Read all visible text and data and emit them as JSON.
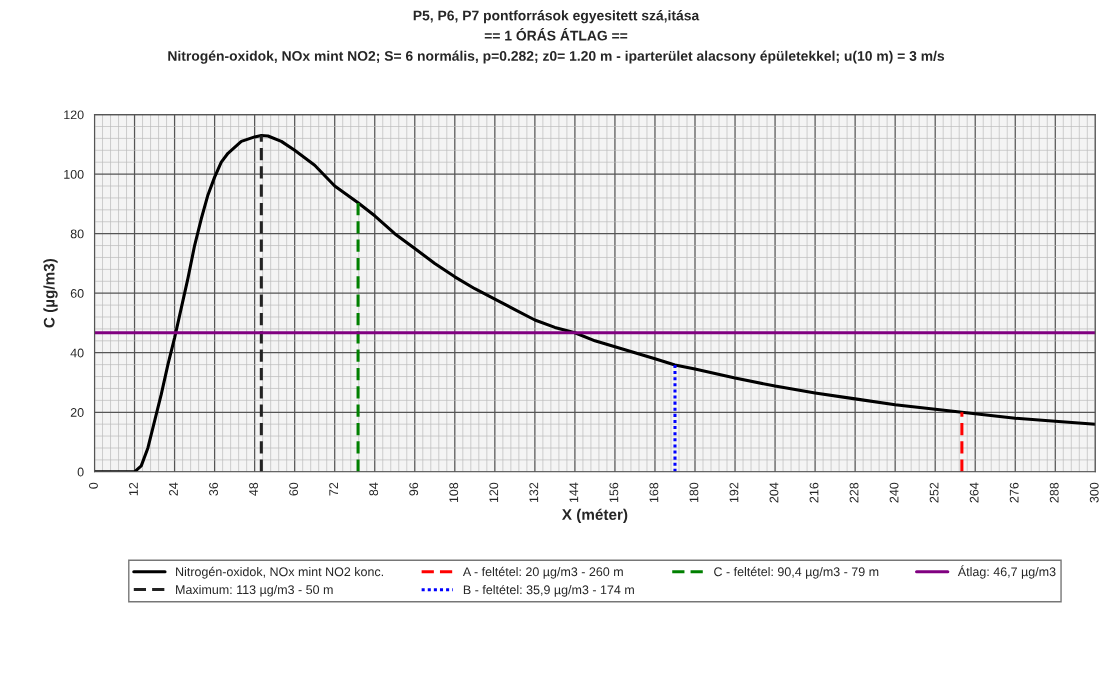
{
  "chart_data": {
    "type": "line",
    "title": "P5, P6, P7 pontforrások egyesitett szá,itása",
    "subtitle": "== 1 ÓRÁS ÁTLAG ==",
    "annotations": [
      "Nitrogén-oxidok, NOx mint NO2; S= 6 normális, p=0.282; z0= 1.20 m - iparterület alacsony épületekkel; u(10 m) = 3 m/s"
    ],
    "xlabel": "X (méter)",
    "ylabel": "C (µg/m3)",
    "xlim": [
      0,
      300
    ],
    "xticks": [
      0,
      12,
      24,
      36,
      48,
      60,
      72,
      84,
      96,
      108,
      120,
      132,
      144,
      156,
      168,
      180,
      192,
      204,
      216,
      228,
      240,
      252,
      264,
      276,
      288,
      300
    ],
    "ylim": [
      0,
      120
    ],
    "yticks": [
      0,
      20,
      40,
      60,
      80,
      100,
      120
    ],
    "grid": true,
    "legend": "bottom",
    "series": [
      {
        "name": "Nitrogén-oxidok, NOx mint NO2 konc.",
        "color": "#000000",
        "line_style": "solid",
        "x": [
          0,
          12,
          14,
          16,
          18,
          20,
          22,
          24,
          26,
          28,
          30,
          32,
          34,
          36,
          38,
          40,
          44,
          48,
          50,
          52,
          56,
          60,
          66,
          72,
          79,
          84,
          90,
          96,
          102,
          108,
          114,
          120,
          126,
          132,
          138,
          144,
          150,
          156,
          162,
          168,
          174,
          180,
          192,
          204,
          216,
          228,
          240,
          252,
          260,
          264,
          276,
          288,
          300
        ],
        "values": [
          0,
          0,
          2,
          8,
          17,
          26,
          36,
          45,
          55,
          65,
          76,
          85,
          93,
          99,
          104,
          107,
          111,
          112.5,
          113,
          112.8,
          111,
          108,
          103,
          96,
          90.4,
          86,
          80,
          75,
          70,
          65.5,
          61.5,
          58,
          54.5,
          51,
          48.5,
          46.7,
          44,
          42,
          40,
          38,
          35.9,
          34.5,
          31.5,
          28.8,
          26.5,
          24.5,
          22.5,
          21,
          20,
          19.5,
          18,
          17,
          16
        ]
      },
      {
        "name": "Maximum: 113 µg/m3 - 50 m",
        "color": "#222222",
        "line_style": "dashed",
        "x": [
          50,
          50
        ],
        "values": [
          0,
          113
        ]
      },
      {
        "name": "A - feltétel: 20 µg/m3 - 260 m",
        "color": "#ff0000",
        "line_style": "dashed",
        "x": [
          260,
          260
        ],
        "values": [
          0,
          20
        ]
      },
      {
        "name": "B - feltétel: 35,9 µg/m3 - 174 m",
        "color": "#0000ff",
        "line_style": "dotted",
        "x": [
          174,
          174
        ],
        "values": [
          35.9,
          0
        ]
      },
      {
        "name": "C - feltétel: 90,4 µg/m3 - 79 m",
        "color": "#008000",
        "line_style": "dashed",
        "x": [
          79,
          79
        ],
        "values": [
          0,
          90.4
        ]
      },
      {
        "name": "Átlag: 46,7 µg/m3",
        "color": "#800080",
        "line_style": "solid",
        "x": [
          0,
          300
        ],
        "values": [
          46.7,
          46.7
        ]
      }
    ]
  }
}
